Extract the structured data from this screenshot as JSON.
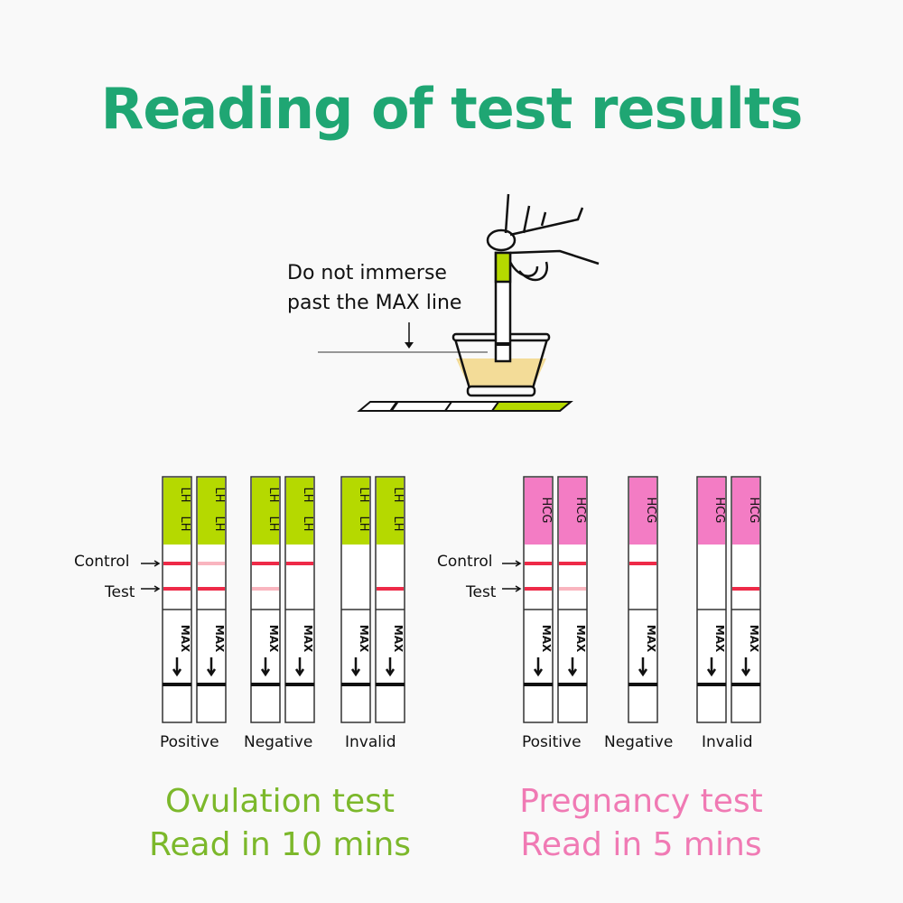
{
  "title": "Reading of test results",
  "instruction": {
    "line1": "Do not immerse",
    "line2": "past the MAX line"
  },
  "colors": {
    "title": "#1fa673",
    "ovulation": "#7cb82b",
    "pregnancy": "#f07ab4",
    "lh_label": "#b5d900",
    "hcg_label": "#f37cc4",
    "line": "#ee2a48",
    "urine": "#f3dc98"
  },
  "ovulation": {
    "label_text": "LH",
    "control_label": "Control",
    "test_label": "Test",
    "title": "Ovulation test",
    "subtitle": "Read in 10 mins",
    "groups": [
      {
        "name": "Positive",
        "strips": [
          {
            "control": "strong",
            "test": "strong"
          },
          {
            "control": "faint",
            "test": "strong"
          }
        ]
      },
      {
        "name": "Negative",
        "strips": [
          {
            "control": "strong",
            "test": "faint"
          },
          {
            "control": "strong",
            "test": "none"
          }
        ]
      },
      {
        "name": "Invalid",
        "strips": [
          {
            "control": "none",
            "test": "none"
          },
          {
            "control": "none",
            "test": "strong"
          }
        ]
      }
    ]
  },
  "pregnancy": {
    "label_text": "HCG",
    "control_label": "Control",
    "test_label": "Test",
    "title": "Pregnancy test",
    "subtitle": "Read in 5 mins",
    "groups": [
      {
        "name": "Positive",
        "strips": [
          {
            "control": "strong",
            "test": "strong"
          },
          {
            "control": "strong",
            "test": "faint"
          }
        ]
      },
      {
        "name": "Negative",
        "strips": [
          {
            "control": "strong",
            "test": "none"
          }
        ]
      },
      {
        "name": "Invalid",
        "strips": [
          {
            "control": "none",
            "test": "none"
          },
          {
            "control": "none",
            "test": "strong"
          }
        ]
      }
    ]
  },
  "max_text": "MAX"
}
